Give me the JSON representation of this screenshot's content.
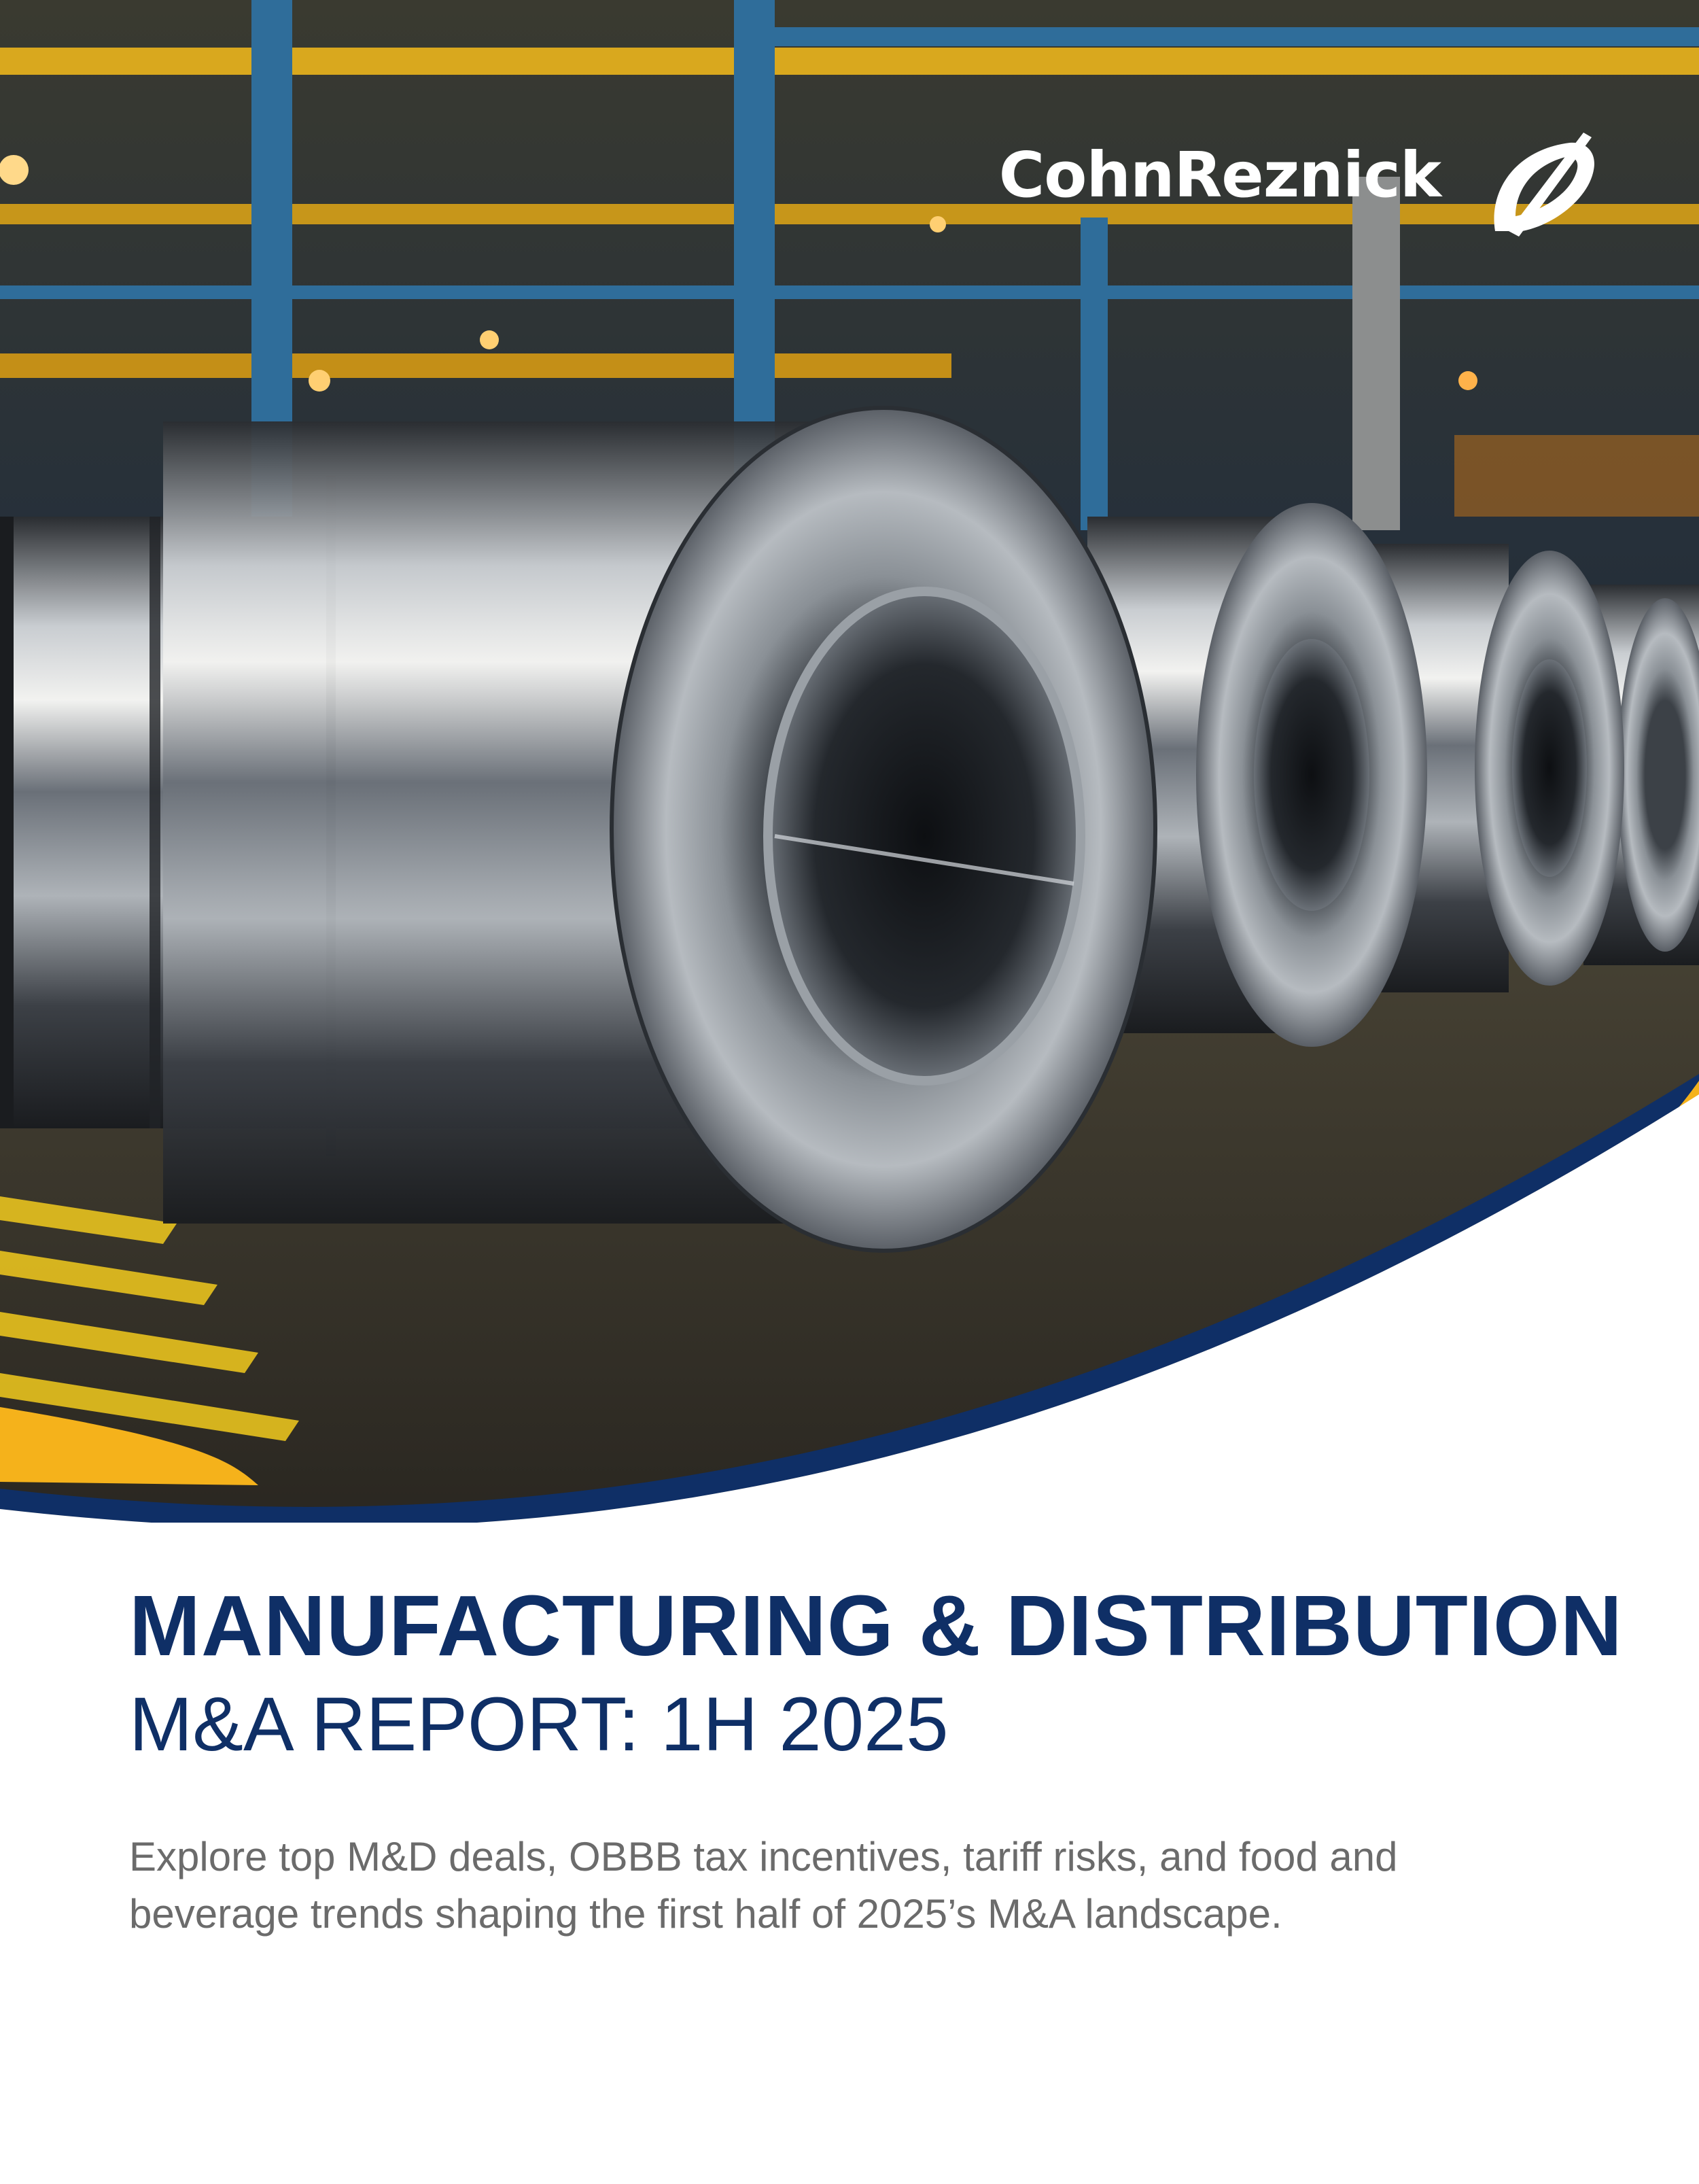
{
  "brand": {
    "name": "CohnReznick",
    "logo_icon": "cohnreznick-swoosh-icon"
  },
  "hero": {
    "description": "Steel coils in factory warehouse photograph",
    "colors": {
      "navy": "#0f2f66",
      "gold": "#f5b21b",
      "blue": "#0a7cc4"
    }
  },
  "title": "MANUFACTURING & DISTRIBUTION",
  "subtitle": "M&A REPORT: 1H 2025",
  "intro": {
    "line1": "Explore top M&D deals, OBBB tax incentives, tariff risks, and food and",
    "line2": "beverage trends shaping the first half of 2025’s M&A landscape."
  }
}
